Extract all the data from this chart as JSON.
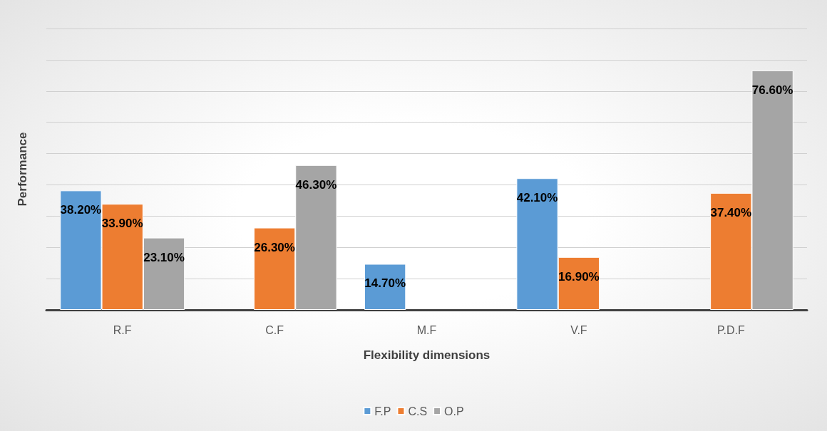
{
  "chart_data": {
    "type": "bar",
    "xlabel": "Flexibility dimensions",
    "ylabel": "Performance",
    "categories": [
      "R.F",
      "C.F",
      "M.F",
      "V.F",
      "P.D.F"
    ],
    "series": [
      {
        "name": "F.P",
        "color": "#5b9bd5",
        "values": [
          38.2,
          null,
          14.7,
          42.1,
          null
        ],
        "value_labels": [
          "38.20%",
          null,
          "14.70%",
          "42.10%",
          null
        ]
      },
      {
        "name": "C.S",
        "color": "#ed7d31",
        "values": [
          33.9,
          26.3,
          null,
          16.9,
          37.4
        ],
        "value_labels": [
          "33.90%",
          "26.30%",
          null,
          "16.90%",
          "37.40%"
        ]
      },
      {
        "name": "O.P",
        "color": "#a5a5a5",
        "values": [
          23.1,
          46.3,
          null,
          null,
          76.6
        ],
        "value_labels": [
          "23.10%",
          "46.30%",
          null,
          null,
          "76.60%"
        ]
      }
    ],
    "ylim": [
      0,
      90
    ],
    "yticks": [
      {
        "value": 0,
        "label": null
      },
      {
        "value": 10,
        "label": null
      },
      {
        "value": 20,
        "label": null
      },
      {
        "value": 30,
        "label": null
      },
      {
        "value": 40,
        "label": null
      },
      {
        "value": 50,
        "label": null
      },
      {
        "value": 60,
        "label": null
      },
      {
        "value": 70,
        "label": null
      },
      {
        "value": 80,
        "label": null
      },
      {
        "value": 90,
        "label": null
      }
    ],
    "tick_labels": "x",
    "grid": "y",
    "legend": "bottom"
  }
}
